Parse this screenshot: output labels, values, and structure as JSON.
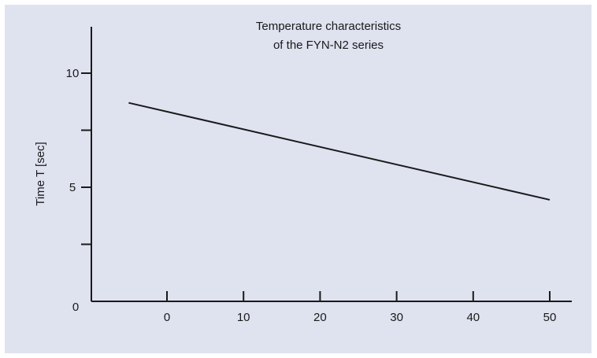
{
  "chart_data": {
    "type": "line",
    "title_lines": [
      "Temperature characteristics",
      "of the FYN-N2 series"
    ],
    "xlabel": "",
    "ylabel": "Time T [sec]",
    "xlim": [
      -10,
      53
    ],
    "ylim": [
      0,
      12
    ],
    "x_ticks": [
      0,
      10,
      20,
      30,
      40,
      50
    ],
    "x_tick_labels": [
      "0",
      "10",
      "20",
      "30",
      "40",
      "50"
    ],
    "y_ticks": [
      0,
      2.5,
      5,
      7.5,
      10
    ],
    "y_tick_labels": [
      "0",
      "",
      "5",
      "",
      "10"
    ],
    "grid": false,
    "series": [
      {
        "x": [
          -5,
          50
        ],
        "y": [
          8.7,
          4.45
        ]
      }
    ],
    "colors": {
      "background": "#dfe2ef",
      "axis": "#1a1a1a",
      "line": "#1a1a1a"
    }
  }
}
